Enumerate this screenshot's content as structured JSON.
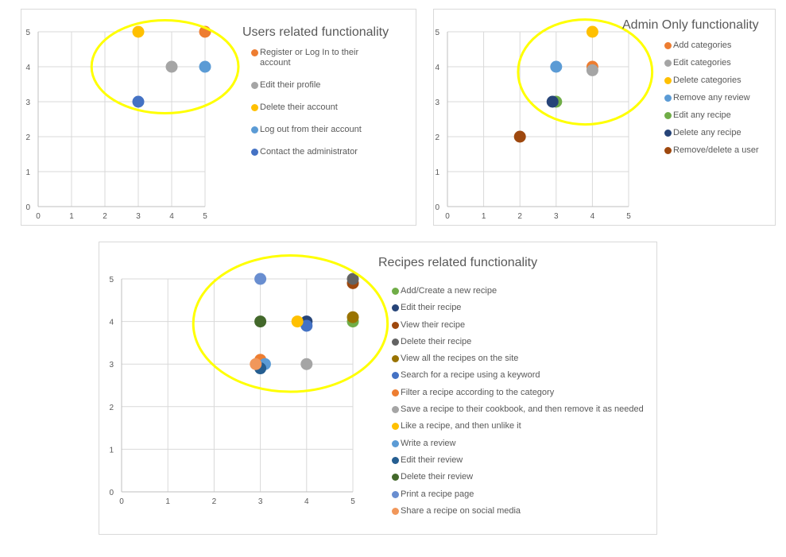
{
  "chart_data": [
    {
      "type": "scatter",
      "title": "Users related functionality",
      "xlim": [
        0,
        5
      ],
      "ylim": [
        0,
        5
      ],
      "xticks": [
        0,
        1,
        2,
        3,
        4,
        5
      ],
      "yticks": [
        0,
        1,
        2,
        3,
        4,
        5
      ],
      "grid": true,
      "legend_position": "right",
      "series": [
        {
          "name": "Register or Log In to their account",
          "color": "#ED7D31",
          "points": [
            [
              5,
              5
            ]
          ]
        },
        {
          "name": "Edit their profile",
          "color": "#A5A5A5",
          "points": [
            [
              4,
              4
            ]
          ]
        },
        {
          "name": "Delete their account",
          "color": "#FFC000",
          "points": [
            [
              3,
              5
            ]
          ]
        },
        {
          "name": "Log out from their account",
          "color": "#5B9BD5",
          "points": [
            [
              5,
              4
            ]
          ]
        },
        {
          "name": "Contact the administrator",
          "color": "#4472C4",
          "points": [
            [
              3,
              3
            ]
          ]
        }
      ],
      "highlight_ellipse": {
        "center": [
          3.8,
          4.0
        ],
        "rx": 2.2,
        "ry": 1.33,
        "color": "#FFFF00"
      }
    },
    {
      "type": "scatter",
      "title": "Admin Only functionality",
      "xlim": [
        0,
        5
      ],
      "ylim": [
        0,
        5
      ],
      "xticks": [
        0,
        1,
        2,
        3,
        4,
        5
      ],
      "yticks": [
        0,
        1,
        2,
        3,
        4,
        5
      ],
      "grid": true,
      "legend_position": "right",
      "series": [
        {
          "name": "Add categories",
          "color": "#ED7D31",
          "points": [
            [
              4,
              4
            ]
          ]
        },
        {
          "name": "Edit categories",
          "color": "#A5A5A5",
          "points": [
            [
              4,
              3.9
            ]
          ]
        },
        {
          "name": "Delete categories",
          "color": "#FFC000",
          "points": [
            [
              4,
              5
            ]
          ]
        },
        {
          "name": "Remove any review",
          "color": "#5B9BD5",
          "points": [
            [
              3,
              4
            ]
          ]
        },
        {
          "name": "Edit any recipe",
          "color": "#70AD47",
          "points": [
            [
              3,
              3
            ]
          ]
        },
        {
          "name": "Delete any recipe",
          "color": "#264478",
          "points": [
            [
              2.9,
              3
            ]
          ]
        },
        {
          "name": "Remove/delete a user",
          "color": "#9E480E",
          "points": [
            [
              2,
              2
            ]
          ]
        }
      ],
      "highlight_ellipse": {
        "center": [
          3.8,
          3.85
        ],
        "rx": 1.85,
        "ry": 1.5,
        "color": "#FFFF00"
      }
    },
    {
      "type": "scatter",
      "title": "Recipes related functionality",
      "xlim": [
        0,
        5
      ],
      "ylim": [
        0,
        5
      ],
      "xticks": [
        0,
        1,
        2,
        3,
        4,
        5
      ],
      "yticks": [
        0,
        1,
        2,
        3,
        4,
        5
      ],
      "grid": true,
      "legend_position": "right",
      "series": [
        {
          "name": "Add/Create a new recipe",
          "color": "#70AD47",
          "points": [
            [
              5,
              4
            ]
          ]
        },
        {
          "name": "Edit their recipe",
          "color": "#264478",
          "points": [
            [
              4,
              4
            ]
          ]
        },
        {
          "name": "View their recipe",
          "color": "#9E480E",
          "points": [
            [
              5,
              4.9
            ]
          ]
        },
        {
          "name": "Delete their recipe",
          "color": "#636363",
          "points": [
            [
              5,
              5
            ]
          ]
        },
        {
          "name": "View all the recipes on the site",
          "color": "#997300",
          "points": [
            [
              5,
              4.1
            ]
          ]
        },
        {
          "name": "Search for a recipe using a keyword",
          "color": "#4472C4",
          "points": [
            [
              4,
              3.9
            ]
          ]
        },
        {
          "name": "Filter a recipe according to the category",
          "color": "#ED7D31",
          "points": [
            [
              3,
              3.1
            ]
          ]
        },
        {
          "name": "Save a recipe to their cookbook, and then remove it as needed",
          "color": "#A5A5A5",
          "points": [
            [
              4,
              3
            ]
          ]
        },
        {
          "name": "Like a recipe, and then unlike it",
          "color": "#FFC000",
          "points": [
            [
              3.8,
              4
            ]
          ]
        },
        {
          "name": "Write a review",
          "color": "#5B9BD5",
          "points": [
            [
              3.1,
              3
            ]
          ]
        },
        {
          "name": "Edit their review",
          "color": "#255E91",
          "points": [
            [
              3,
              2.9
            ]
          ]
        },
        {
          "name": "Delete their review",
          "color": "#43682B",
          "points": [
            [
              3,
              4
            ]
          ]
        },
        {
          "name": "Print a recipe page",
          "color": "#698ED0",
          "points": [
            [
              3,
              5
            ]
          ]
        },
        {
          "name": "Share a recipe on social media",
          "color": "#F1975A",
          "points": [
            [
              2.9,
              3
            ]
          ]
        }
      ],
      "highlight_ellipse": {
        "center": [
          3.65,
          3.95
        ],
        "rx": 2.1,
        "ry": 1.6,
        "color": "#FFFF00"
      }
    }
  ]
}
